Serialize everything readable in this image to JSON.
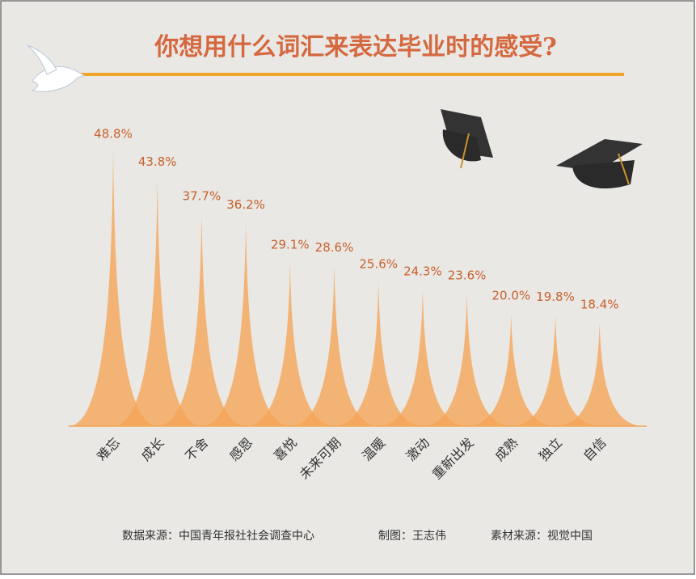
{
  "chart_data": {
    "type": "spike",
    "title": "你想用什么词汇来表达毕业时的感受?",
    "categories": [
      "难忘",
      "成长",
      "不舍",
      "感恩",
      "喜悦",
      "未来可期",
      "温暖",
      "激动",
      "重新出发",
      "成熟",
      "独立",
      "自信"
    ],
    "values": [
      48.8,
      43.8,
      37.7,
      36.2,
      29.1,
      28.6,
      25.6,
      24.3,
      23.6,
      20.0,
      19.8,
      18.4
    ],
    "value_labels": [
      "48.8%",
      "43.8%",
      "37.7%",
      "36.2%",
      "29.1%",
      "28.6%",
      "25.6%",
      "24.3%",
      "23.6%",
      "20.0%",
      "19.8%",
      "18.4%"
    ],
    "color": "#f5a558",
    "footnotes": [
      "数据来源：中国青年报社社会调查中心",
      "制图：王志伟",
      "素材来源：视觉中国"
    ]
  }
}
